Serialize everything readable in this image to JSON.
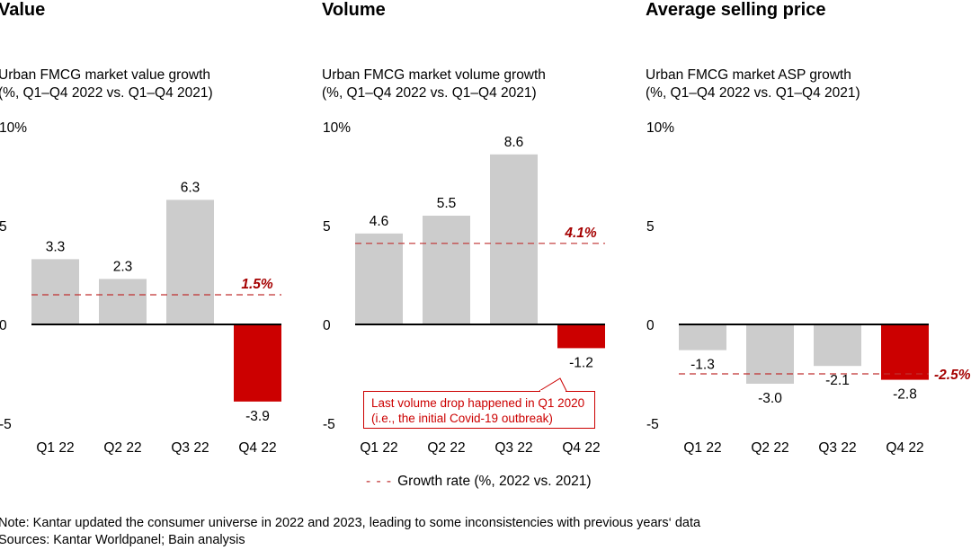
{
  "colors": {
    "bar": "#cccccc",
    "highlight": "#cc0000",
    "growth_line": "#c03030",
    "growth_label": "#a50000"
  },
  "legend": {
    "label": "Growth rate (%, 2022 vs. 2021)"
  },
  "callout": {
    "line1": "Last volume drop happened in Q1 2020",
    "line2": "(i.e., the initial Covid-19 outbreak)"
  },
  "notes": [
    "Note: Kantar updated the consumer universe in 2022 and 2023, leading to some inconsistencies with previous years‘ data",
    "Sources: Kantar Worldpanel; Bain analysis"
  ],
  "chart_data": [
    {
      "type": "bar",
      "title": "Value",
      "subtitle": [
        "Urban FMCG market value growth",
        "(%, Q1–Q4 2022 vs. Q1–Q4 2021)"
      ],
      "categories": [
        "Q1 22",
        "Q2 22",
        "Q3 22",
        "Q4 22"
      ],
      "values": [
        3.3,
        2.3,
        6.3,
        -3.9
      ],
      "value_labels": [
        "3.3",
        "2.3",
        "6.3",
        "-3.9"
      ],
      "highlight": [
        false,
        false,
        false,
        true
      ],
      "growth_rate": 1.5,
      "growth_label": "1.5%",
      "yticks": [
        "10%",
        "5",
        "0",
        "-5"
      ],
      "ytick_values": [
        10,
        5,
        0,
        -5
      ],
      "ylim": [
        -5,
        10
      ]
    },
    {
      "type": "bar",
      "title": "Volume",
      "subtitle": [
        "Urban FMCG market volume growth",
        "(%, Q1–Q4 2022 vs. Q1–Q4 2021)"
      ],
      "categories": [
        "Q1 22",
        "Q2 22",
        "Q3 22",
        "Q4 22"
      ],
      "values": [
        4.6,
        5.5,
        8.6,
        -1.2
      ],
      "value_labels": [
        "4.6",
        "5.5",
        "8.6",
        "-1.2"
      ],
      "highlight": [
        false,
        false,
        false,
        true
      ],
      "growth_rate": 4.1,
      "growth_label": "4.1%",
      "yticks": [
        "10%",
        "5",
        "0",
        "-5"
      ],
      "ytick_values": [
        10,
        5,
        0,
        -5
      ],
      "ylim": [
        -5,
        10
      ]
    },
    {
      "type": "bar",
      "title": "Average selling price",
      "subtitle": [
        "Urban FMCG market ASP growth",
        "(%, Q1–Q4 2022 vs. Q1–Q4 2021)"
      ],
      "categories": [
        "Q1 22",
        "Q2 22",
        "Q3 22",
        "Q4 22"
      ],
      "values": [
        -1.3,
        -3.0,
        -2.1,
        -2.8
      ],
      "value_labels": [
        "-1.3",
        "-3.0",
        "-2.1",
        "-2.8"
      ],
      "highlight": [
        false,
        false,
        false,
        true
      ],
      "growth_rate": -2.5,
      "growth_label": "-2.5%",
      "yticks": [
        "10%",
        "5",
        "0",
        "-5"
      ],
      "ytick_values": [
        10,
        5,
        0,
        -5
      ],
      "ylim": [
        -5,
        10
      ]
    }
  ]
}
